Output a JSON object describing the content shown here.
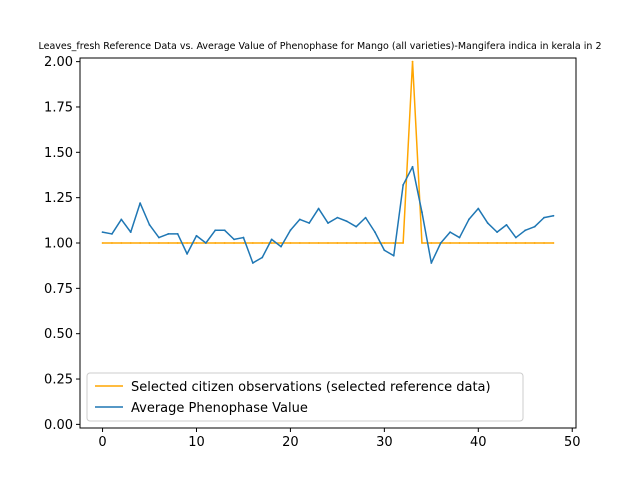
{
  "chart_data": {
    "type": "line",
    "title": "Leaves_fresh Reference Data vs. Average Value of Phenophase for Mango (all varieties)-Mangifera indica in kerala in 2",
    "xlabel": "",
    "ylabel": "",
    "xlim": [
      -2.4,
      50.4
    ],
    "ylim": [
      -0.02,
      2.02
    ],
    "xticks": [
      0,
      10,
      20,
      30,
      40,
      50
    ],
    "xtick_labels": [
      "0",
      "10",
      "20",
      "30",
      "40",
      "50"
    ],
    "yticks": [
      0,
      0.25,
      0.5,
      0.75,
      1.0,
      1.25,
      1.5,
      1.75,
      2.0
    ],
    "ytick_labels": [
      "0.00",
      "0.25",
      "0.50",
      "0.75",
      "1.00",
      "1.25",
      "1.50",
      "1.75",
      "2.00"
    ],
    "grid": false,
    "legend_position": "lower-left",
    "series": [
      {
        "name": "Selected citizen observations (selected reference data)",
        "color": "#ffa500",
        "x": [
          0,
          1,
          2,
          3,
          4,
          5,
          6,
          7,
          8,
          9,
          10,
          11,
          12,
          13,
          14,
          15,
          16,
          17,
          18,
          19,
          20,
          21,
          22,
          23,
          24,
          25,
          26,
          27,
          28,
          29,
          30,
          31,
          32,
          33,
          34,
          35,
          36,
          37,
          38,
          39,
          40,
          41,
          42,
          43,
          44,
          45,
          46,
          47,
          48
        ],
        "y": [
          1,
          1,
          1,
          1,
          1,
          1,
          1,
          1,
          1,
          1,
          1,
          1,
          1,
          1,
          1,
          1,
          1,
          1,
          1,
          1,
          1,
          1,
          1,
          1,
          1,
          1,
          1,
          1,
          1,
          1,
          1,
          1,
          1,
          2,
          1,
          1,
          1,
          1,
          1,
          1,
          1,
          1,
          1,
          1,
          1,
          1,
          1,
          1,
          1
        ]
      },
      {
        "name": "Average Phenophase Value",
        "color": "#1f77b4",
        "x": [
          0,
          1,
          2,
          3,
          4,
          5,
          6,
          7,
          8,
          9,
          10,
          11,
          12,
          13,
          14,
          15,
          16,
          17,
          18,
          19,
          20,
          21,
          22,
          23,
          24,
          25,
          26,
          27,
          28,
          29,
          30,
          31,
          32,
          33,
          34,
          35,
          36,
          37,
          38,
          39,
          40,
          41,
          42,
          43,
          44,
          45,
          46,
          47,
          48
        ],
        "y": [
          1.06,
          1.05,
          1.13,
          1.06,
          1.22,
          1.1,
          1.03,
          1.05,
          1.05,
          0.94,
          1.04,
          1.0,
          1.07,
          1.07,
          1.02,
          1.03,
          0.89,
          0.92,
          1.02,
          0.98,
          1.07,
          1.13,
          1.11,
          1.19,
          1.11,
          1.14,
          1.12,
          1.09,
          1.14,
          1.06,
          0.96,
          0.93,
          1.32,
          1.42,
          1.17,
          0.89,
          1.0,
          1.06,
          1.03,
          1.13,
          1.19,
          1.11,
          1.06,
          1.1,
          1.03,
          1.07,
          1.09,
          1.14,
          1.15
        ]
      }
    ]
  }
}
